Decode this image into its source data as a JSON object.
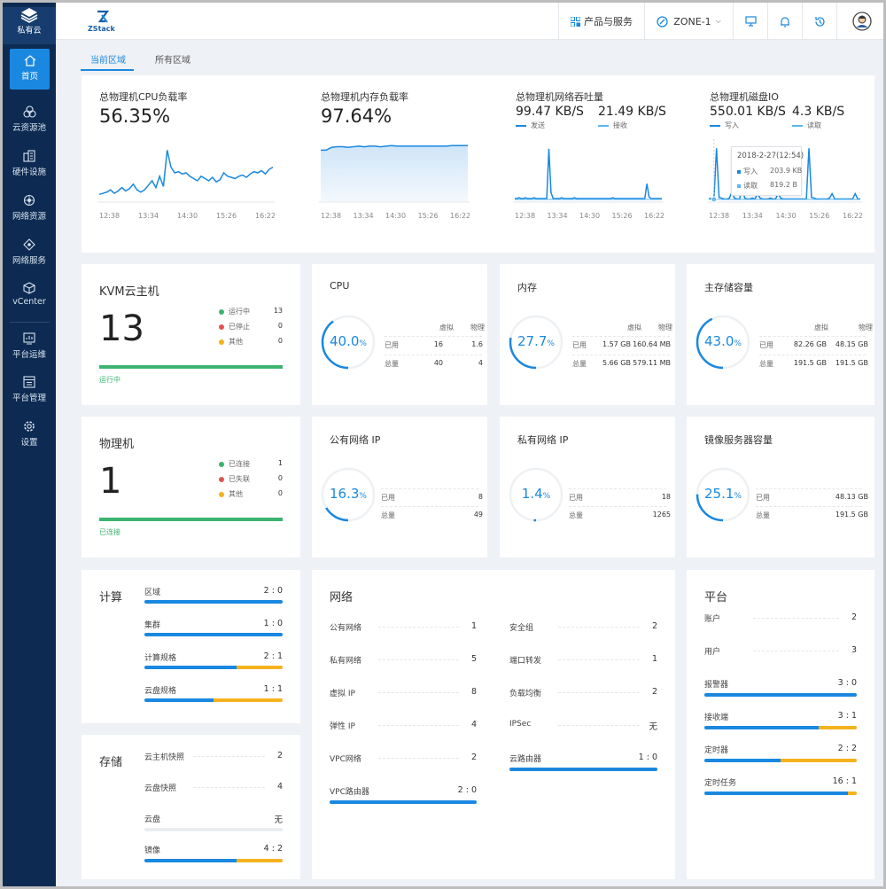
{
  "sidebar": {
    "brand": "私有云",
    "items": [
      {
        "label": "首页",
        "icon": "home-icon"
      },
      {
        "label": "云资源池",
        "icon": "cloud-pool-icon"
      },
      {
        "label": "硬件设施",
        "icon": "hardware-icon"
      },
      {
        "label": "网络资源",
        "icon": "network-resource-icon"
      },
      {
        "label": "网络服务",
        "icon": "network-service-icon"
      },
      {
        "label": "vCenter",
        "icon": "vcenter-icon"
      },
      {
        "label": "平台运维",
        "icon": "ops-icon"
      },
      {
        "label": "平台管理",
        "icon": "management-icon"
      },
      {
        "label": "设置",
        "icon": "settings-icon"
      }
    ]
  },
  "header": {
    "logo": "ZStack",
    "products": "产品与服务",
    "zone": "ZONE-1"
  },
  "tabs": [
    "当前区域",
    "所有区域"
  ],
  "colors": {
    "accent": "#1a88e0",
    "light_blue": "#5cb6f0",
    "green": "#3cb371",
    "red": "#e05454",
    "orange": "#f5b21f"
  },
  "perf": [
    {
      "title": "总物理机CPU负载率",
      "value": "56.35%",
      "times": [
        "12:38",
        "13:34",
        "14:30",
        "15:26",
        "16:22"
      ],
      "series": [
        6,
        7,
        8,
        10,
        7,
        9,
        12,
        9,
        11,
        15,
        10,
        8,
        10,
        14,
        18,
        12,
        22,
        13,
        45,
        30,
        25,
        26,
        24,
        25,
        22,
        20,
        18,
        22,
        20,
        18,
        21,
        17,
        19,
        25,
        22,
        21,
        20,
        22,
        23,
        21,
        24,
        26,
        25,
        27,
        24,
        28,
        30
      ]
    },
    {
      "title": "总物理机内存负载率",
      "value": "97.64%",
      "times": [
        "12:38",
        "13:34",
        "14:30",
        "15:26",
        "16:22"
      ],
      "series": [
        90,
        90,
        95,
        96,
        96,
        95,
        96,
        97,
        96,
        97,
        97,
        96,
        97,
        98,
        97,
        97,
        97,
        97,
        97,
        97,
        97,
        97,
        97,
        97,
        98,
        98,
        98,
        98
      ]
    },
    {
      "title": "总物理机网络吞吐量",
      "values": [
        {
          "value": "99.47 KB/S",
          "legend": "发送"
        },
        {
          "value": "21.49 KB/S",
          "legend": "接收"
        }
      ],
      "times": [
        "12:38",
        "13:34",
        "14:30",
        "15:26",
        "16:22"
      ],
      "series": [
        3,
        3,
        4,
        3,
        3,
        4,
        3,
        3,
        3,
        4,
        3,
        3,
        3,
        3,
        3,
        3,
        60,
        10,
        3,
        3,
        3,
        3,
        4,
        3,
        3,
        3,
        3,
        3,
        4,
        3,
        3,
        3,
        3,
        3,
        3,
        3,
        3,
        3,
        3,
        3,
        3,
        3,
        3,
        3,
        3,
        3,
        4,
        3,
        3,
        3,
        3,
        3,
        3,
        3,
        3,
        3,
        3,
        3,
        3,
        3,
        3,
        3,
        20,
        5,
        3,
        3,
        3,
        3,
        3,
        3
      ]
    },
    {
      "title": "总物理机磁盘IO",
      "values": [
        {
          "value": "550.01 KB/S",
          "legend": "写入"
        },
        {
          "value": "4.3 KB/S",
          "legend": "读取"
        }
      ],
      "times": [
        "12:38",
        "13:34",
        "14:30",
        "15:26",
        "16:22"
      ],
      "series": [
        3,
        4,
        3,
        70,
        5,
        4,
        3,
        3,
        4,
        12,
        4,
        3,
        3,
        18,
        4,
        3,
        3,
        4,
        3,
        10,
        4,
        3,
        3,
        3,
        4,
        3,
        3,
        10,
        4,
        3,
        3,
        3,
        3,
        3,
        3,
        3,
        3,
        3,
        3,
        70,
        5,
        4,
        3,
        3,
        3,
        3,
        3,
        4,
        10,
        3,
        3,
        3,
        3,
        3,
        3,
        3,
        3,
        10,
        3,
        3
      ],
      "tooltip": {
        "time": "2018-2-27(12:54)",
        "rows": [
          {
            "label": "写入",
            "value": "203.9 KB"
          },
          {
            "label": "读取",
            "value": "819.2 B"
          }
        ]
      }
    }
  ],
  "kvm": {
    "title": "KVM云主机",
    "count": "13",
    "status": "运行中",
    "legend": [
      {
        "label": "运行中",
        "value": "13",
        "color": "#3cb371"
      },
      {
        "label": "已停止",
        "value": "0",
        "color": "#e05454"
      },
      {
        "label": "其他",
        "value": "0",
        "color": "#f5b21f"
      }
    ]
  },
  "host": {
    "title": "物理机",
    "count": "1",
    "status": "已连接",
    "legend": [
      {
        "label": "已连接",
        "value": "1",
        "color": "#3cb371"
      },
      {
        "label": "已失联",
        "value": "0",
        "color": "#e05454"
      },
      {
        "label": "其他",
        "value": "0",
        "color": "#f5b21f"
      }
    ]
  },
  "cap": [
    {
      "title": "CPU",
      "pct": "40.0",
      "frac": 0.4,
      "cols": [
        "虚拟",
        "物理"
      ],
      "rows": [
        {
          "label": "已用",
          "v": "16",
          "p": "1.6"
        },
        {
          "label": "总量",
          "v": "40",
          "p": "4"
        }
      ]
    },
    {
      "title": "内存",
      "pct": "27.7",
      "frac": 0.277,
      "cols": [
        "虚拟",
        "物理"
      ],
      "rows": [
        {
          "label": "已用",
          "v": "1.57 GB",
          "p": "160.64 MB"
        },
        {
          "label": "总量",
          "v": "5.66 GB",
          "p": "579.11 MB"
        }
      ]
    },
    {
      "title": "主存储容量",
      "pct": "43.0",
      "frac": 0.43,
      "cols": [
        "虚拟",
        "物理"
      ],
      "rows": [
        {
          "label": "已用",
          "v": "82.26 GB",
          "p": "48.15 GB"
        },
        {
          "label": "总量",
          "v": "191.5 GB",
          "p": "191.5 GB"
        }
      ]
    },
    {
      "title": "公有网络 IP",
      "pct": "16.3",
      "frac": 0.163,
      "rows": [
        {
          "label": "已用",
          "p": "8"
        },
        {
          "label": "总量",
          "p": "49"
        }
      ]
    },
    {
      "title": "私有网络 IP",
      "pct": "1.4",
      "frac": 0.014,
      "rows": [
        {
          "label": "已用",
          "p": "18"
        },
        {
          "label": "总量",
          "p": "1265"
        }
      ]
    },
    {
      "title": "镜像服务器容量",
      "pct": "25.1",
      "frac": 0.251,
      "rows": [
        {
          "label": "已用",
          "p": "48.13 GB"
        },
        {
          "label": "总量",
          "p": "191.5 GB"
        }
      ]
    }
  ],
  "compute": {
    "title": "计算",
    "items": [
      {
        "label": "区域",
        "value": "2 : 0",
        "a": 2,
        "b": 0
      },
      {
        "label": "集群",
        "value": "1 : 0",
        "a": 1,
        "b": 0
      },
      {
        "label": "计算规格",
        "value": "2 : 1",
        "a": 2,
        "b": 1
      },
      {
        "label": "云盘规格",
        "value": "1 : 1",
        "a": 1,
        "b": 1
      }
    ]
  },
  "storage": {
    "title": "存储",
    "items": [
      {
        "label": "云主机快照",
        "value": "2",
        "type": "plain"
      },
      {
        "label": "云盘快照",
        "value": "4",
        "type": "plain"
      },
      {
        "label": "云盘",
        "value": "无",
        "type": "bar",
        "a": 0,
        "b": 0
      },
      {
        "label": "镜像",
        "value": "4 : 2",
        "type": "bar",
        "a": 4,
        "b": 2
      }
    ]
  },
  "network": {
    "title": "网络",
    "left": [
      {
        "label": "公有网络",
        "value": "1",
        "type": "plain"
      },
      {
        "label": "私有网络",
        "value": "5",
        "type": "plain"
      },
      {
        "label": "虚拟 IP",
        "value": "8",
        "type": "plain"
      },
      {
        "label": "弹性 IP",
        "value": "4",
        "type": "plain"
      },
      {
        "label": "VPC网络",
        "value": "2",
        "type": "plain"
      },
      {
        "label": "VPC路由器",
        "value": "2 : 0",
        "type": "bar",
        "a": 2,
        "b": 0
      }
    ],
    "right": [
      {
        "label": "安全组",
        "value": "2",
        "type": "plain"
      },
      {
        "label": "端口转发",
        "value": "1",
        "type": "plain"
      },
      {
        "label": "负载均衡",
        "value": "2",
        "type": "plain"
      },
      {
        "label": "IPSec",
        "value": "无",
        "type": "plain"
      },
      {
        "label": "云路由器",
        "value": "1 : 0",
        "type": "bar",
        "a": 1,
        "b": 0
      }
    ]
  },
  "platform": {
    "title": "平台",
    "items": [
      {
        "label": "账户",
        "value": "2",
        "type": "plain"
      },
      {
        "label": "用户",
        "value": "3",
        "type": "plain"
      },
      {
        "label": "报警器",
        "value": "3 : 0",
        "type": "bar",
        "a": 3,
        "b": 0
      },
      {
        "label": "接收端",
        "value": "3 : 1",
        "type": "bar",
        "a": 3,
        "b": 1
      },
      {
        "label": "定时器",
        "value": "2 : 2",
        "type": "bar",
        "a": 2,
        "b": 2
      },
      {
        "label": "定时任务",
        "value": "16 : 1",
        "type": "bar",
        "a": 16,
        "b": 1
      }
    ]
  }
}
